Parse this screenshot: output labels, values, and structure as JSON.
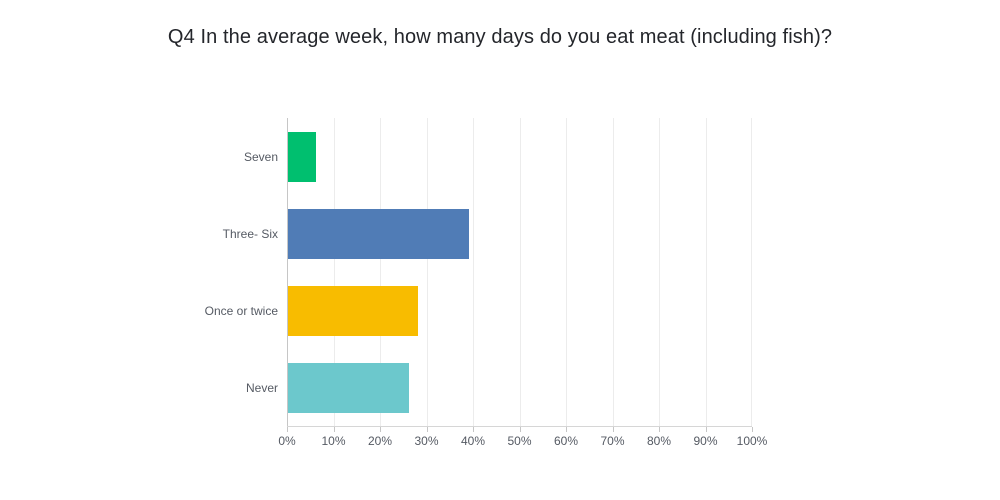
{
  "title": "Q4 In the average week, how many days do you eat meat (including fish)?",
  "chart_data": {
    "type": "bar",
    "orientation": "horizontal",
    "title": "Q4 In the average week, how many days do you eat meat (including fish)?",
    "categories": [
      "Seven",
      "Three- Six",
      "Once or twice",
      "Never"
    ],
    "values": [
      6,
      39,
      28,
      26
    ],
    "bar_colors": [
      "#00BF6F",
      "#507CB6",
      "#F8BC00",
      "#6CC8CC"
    ],
    "xlabel": "",
    "ylabel": "",
    "xlim": [
      0,
      100
    ],
    "x_tick_labels": [
      "0%",
      "10%",
      "20%",
      "30%",
      "40%",
      "50%",
      "60%",
      "70%",
      "80%",
      "90%",
      "100%"
    ],
    "x_tick_values": [
      0,
      10,
      20,
      30,
      40,
      50,
      60,
      70,
      80,
      90,
      100
    ],
    "grid": true,
    "legend": false
  },
  "colors": {
    "title_text": "#24262b",
    "axis_text": "#555a63",
    "gridline": "#ececec",
    "axis_edge": "#c6c6c6",
    "x_axis_line": "#d6d6d6",
    "background": "#ffffff"
  }
}
